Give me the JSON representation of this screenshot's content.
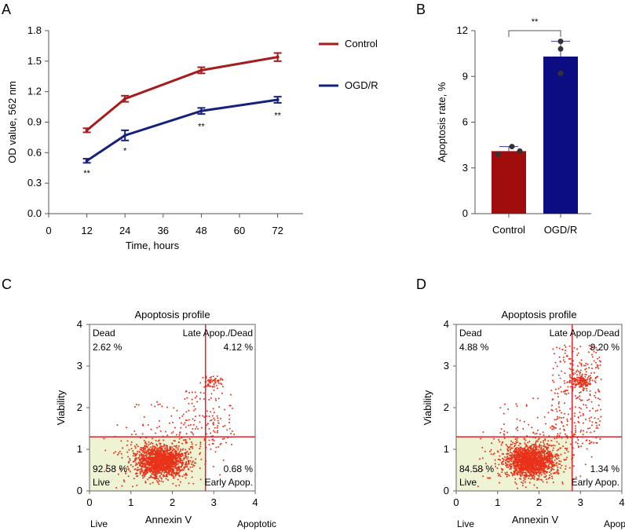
{
  "panels": {
    "a": "A",
    "b": "B",
    "c": "C",
    "d": "D"
  },
  "chart_data": [
    {
      "type": "line",
      "panel": "A",
      "title": "",
      "xlabel": "Time, hours",
      "ylabel": "OD value, 562 nm",
      "xlim": [
        0,
        80
      ],
      "ylim": [
        0,
        1.8
      ],
      "xticks": [
        "0",
        "12",
        "24",
        "36",
        "48",
        "60",
        "72"
      ],
      "yticks": [
        "0.0",
        "0.3",
        "0.6",
        "0.9",
        "1.2",
        "1.5",
        "1.8"
      ],
      "legend": "top-right",
      "series": [
        {
          "name": "Control",
          "color": "#a51c1c",
          "x": [
            12,
            24,
            48,
            72
          ],
          "y": [
            0.82,
            1.13,
            1.41,
            1.54
          ],
          "err": [
            0.02,
            0.03,
            0.03,
            0.04
          ]
        },
        {
          "name": "OGD/R",
          "color": "#16207e",
          "x": [
            12,
            24,
            48,
            72
          ],
          "y": [
            0.52,
            0.77,
            1.01,
            1.12
          ],
          "err": [
            0.02,
            0.05,
            0.03,
            0.03
          ]
        }
      ],
      "annotations": [
        {
          "x": 12,
          "y": 0.4,
          "text": "**"
        },
        {
          "x": 24,
          "y": 0.62,
          "text": "*"
        },
        {
          "x": 48,
          "y": 0.86,
          "text": "**"
        },
        {
          "x": 72,
          "y": 0.97,
          "text": "**"
        }
      ]
    },
    {
      "type": "bar",
      "panel": "B",
      "title": "",
      "xlabel": "",
      "ylabel": "Apoptosis rate, %",
      "ylim": [
        0,
        12
      ],
      "yticks": [
        "0",
        "3",
        "6",
        "9",
        "12"
      ],
      "categories": [
        "Control",
        "OGD/R"
      ],
      "values": [
        4.1,
        10.3
      ],
      "err": [
        0.3,
        1.0
      ],
      "colors": [
        "#a00d0d",
        "#0d0d82"
      ],
      "points": [
        [
          3.9,
          4.4,
          4.1
        ],
        [
          11.3,
          10.8,
          9.2
        ]
      ],
      "significance": "**"
    },
    {
      "type": "scatter",
      "panel": "C",
      "title": "Apoptosis profile",
      "xlabel": "Annexin V",
      "ylabel": "Viability",
      "xlim": [
        0,
        4
      ],
      "ylim": [
        0,
        4
      ],
      "xticks": [
        "0",
        "1",
        "2",
        "3",
        "4"
      ],
      "yticks": [
        "0",
        "1",
        "2",
        "3",
        "4"
      ],
      "gates": {
        "x": 2.8,
        "y": 1.3
      },
      "axis_notes": {
        "left": "Live",
        "right": "Apoptotic"
      },
      "quadrants": {
        "dead": {
          "label": "Dead",
          "value": "2.62 %"
        },
        "late": {
          "label": "Late Apop./Dead",
          "value": "4.12 %"
        },
        "live": {
          "label": "Live",
          "value": "92.58 %"
        },
        "early": {
          "label": "Early Apop.",
          "value": "0.68 %"
        }
      }
    },
    {
      "type": "scatter",
      "panel": "D",
      "title": "Apoptosis profile",
      "xlabel": "Annexin V",
      "ylabel": "Viability",
      "xlim": [
        0,
        4
      ],
      "ylim": [
        0,
        4
      ],
      "xticks": [
        "0",
        "1",
        "2",
        "3",
        "4"
      ],
      "yticks": [
        "0",
        "1",
        "2",
        "3",
        "4"
      ],
      "gates": {
        "x": 2.8,
        "y": 1.3
      },
      "axis_notes": {
        "left": "Live",
        "right": "Apoptotic"
      },
      "quadrants": {
        "dead": {
          "label": "Dead",
          "value": "4.88 %"
        },
        "late": {
          "label": "Late Apop./Dead",
          "value": "9.20 %"
        },
        "live": {
          "label": "Live",
          "value": "84.58 %"
        },
        "early": {
          "label": "Early Apop.",
          "value": "1.34 %"
        }
      }
    }
  ]
}
